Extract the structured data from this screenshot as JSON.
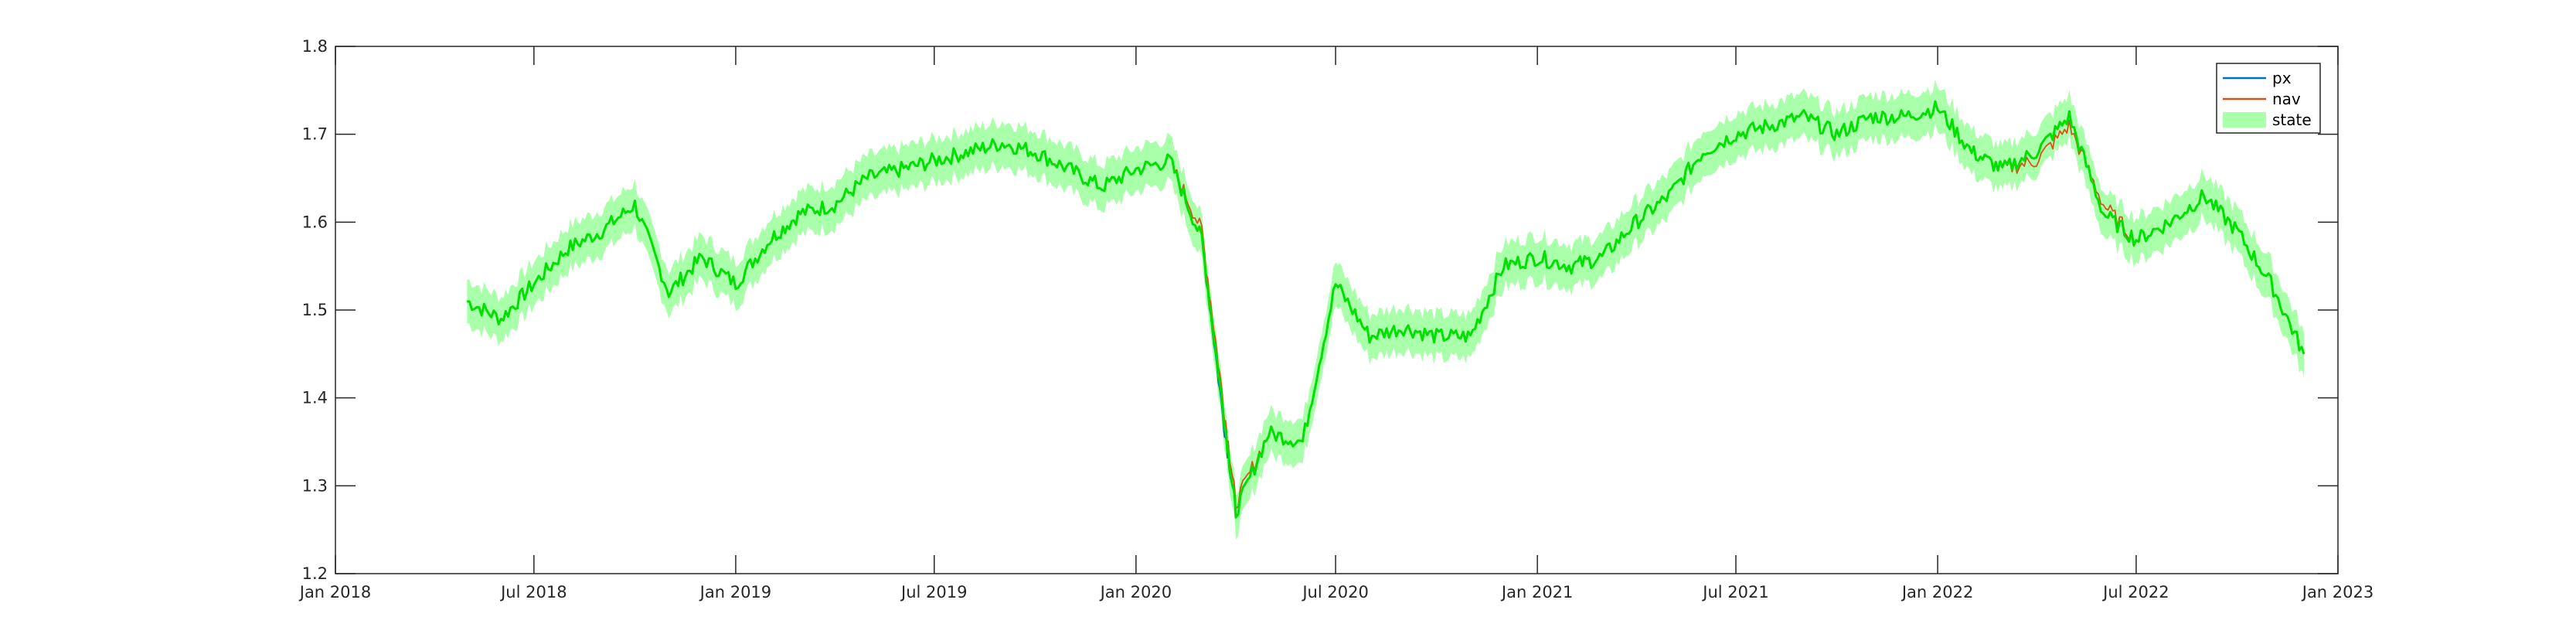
{
  "chart_data": {
    "type": "line",
    "title": "",
    "xlabel": "",
    "ylabel": "",
    "xlim": [
      "2018-01-01",
      "2023-01-01"
    ],
    "ylim": [
      1.2,
      1.8
    ],
    "grid": false,
    "legend_position": "top-right",
    "x_tick_labels": [
      "Jan 2018",
      "Jul 2018",
      "Jan 2019",
      "Jul 2019",
      "Jan 2020",
      "Jul 2020",
      "Jan 2021",
      "Jul 2021",
      "Jan 2022",
      "Jul 2022",
      "Jan 2023"
    ],
    "x_tick_dates": [
      "2018-01-01",
      "2018-07-01",
      "2019-01-01",
      "2019-07-01",
      "2020-01-01",
      "2020-07-01",
      "2021-01-01",
      "2021-07-01",
      "2022-01-01",
      "2022-07-01",
      "2023-01-01"
    ],
    "y_tick_labels": [
      "1.2",
      "1.3",
      "1.4",
      "1.5",
      "1.6",
      "1.7",
      "1.8"
    ],
    "y_tick_values": [
      1.2,
      1.3,
      1.4,
      1.5,
      1.6,
      1.7,
      1.8
    ],
    "dates": [
      "2018-05-01",
      "2018-06-01",
      "2018-07-01",
      "2018-08-01",
      "2018-09-01",
      "2018-10-01",
      "2018-11-01",
      "2018-12-01",
      "2019-01-01",
      "2019-02-01",
      "2019-03-01",
      "2019-04-01",
      "2019-05-01",
      "2019-06-01",
      "2019-07-01",
      "2019-08-01",
      "2019-09-01",
      "2019-10-01",
      "2019-11-01",
      "2019-12-01",
      "2020-01-01",
      "2020-02-01",
      "2020-03-01",
      "2020-03-20",
      "2020-04-01",
      "2020-05-01",
      "2020-06-01",
      "2020-07-01",
      "2020-08-01",
      "2020-09-01",
      "2020-10-01",
      "2020-11-01",
      "2020-12-01",
      "2021-01-01",
      "2021-02-01",
      "2021-03-01",
      "2021-04-01",
      "2021-05-01",
      "2021-06-01",
      "2021-07-01",
      "2021-08-01",
      "2021-09-01",
      "2021-10-01",
      "2021-11-01",
      "2021-12-01",
      "2022-01-01",
      "2022-02-01",
      "2022-03-01",
      "2022-04-01",
      "2022-05-01",
      "2022-06-01",
      "2022-07-01",
      "2022-08-01",
      "2022-09-01",
      "2022-10-01",
      "2022-11-01",
      "2022-12-01"
    ],
    "series": [
      {
        "name": "px",
        "color": "#0072BD",
        "values": [
          1.51,
          1.49,
          1.53,
          1.57,
          1.59,
          1.62,
          1.52,
          1.56,
          1.53,
          1.58,
          1.61,
          1.62,
          1.65,
          1.66,
          1.67,
          1.68,
          1.69,
          1.68,
          1.66,
          1.64,
          1.66,
          1.67,
          1.58,
          1.38,
          1.27,
          1.36,
          1.35,
          1.53,
          1.47,
          1.48,
          1.47,
          1.47,
          1.55,
          1.56,
          1.55,
          1.56,
          1.6,
          1.63,
          1.68,
          1.7,
          1.71,
          1.72,
          1.7,
          1.72,
          1.72,
          1.73,
          1.68,
          1.66,
          1.68,
          1.72,
          1.61,
          1.58,
          1.6,
          1.63,
          1.59,
          1.53,
          1.45
        ]
      },
      {
        "name": "nav",
        "color": "#D95319",
        "values": [
          1.51,
          1.49,
          1.53,
          1.57,
          1.59,
          1.62,
          1.52,
          1.56,
          1.53,
          1.58,
          1.61,
          1.62,
          1.65,
          1.66,
          1.67,
          1.68,
          1.69,
          1.68,
          1.66,
          1.64,
          1.66,
          1.67,
          1.59,
          1.4,
          1.28,
          1.36,
          1.35,
          1.53,
          1.47,
          1.48,
          1.47,
          1.47,
          1.55,
          1.56,
          1.55,
          1.56,
          1.6,
          1.63,
          1.68,
          1.7,
          1.71,
          1.72,
          1.7,
          1.72,
          1.72,
          1.73,
          1.68,
          1.66,
          1.67,
          1.71,
          1.62,
          1.58,
          1.6,
          1.63,
          1.59,
          1.53,
          1.45
        ]
      },
      {
        "name": "state",
        "color": "#00E000",
        "band_color": "#AAFFAA",
        "band_halfwidth": 0.025,
        "values": [
          1.51,
          1.49,
          1.53,
          1.57,
          1.59,
          1.62,
          1.52,
          1.56,
          1.53,
          1.58,
          1.61,
          1.62,
          1.65,
          1.66,
          1.67,
          1.68,
          1.69,
          1.68,
          1.66,
          1.64,
          1.66,
          1.67,
          1.58,
          1.39,
          1.27,
          1.36,
          1.35,
          1.53,
          1.47,
          1.48,
          1.47,
          1.47,
          1.55,
          1.56,
          1.55,
          1.56,
          1.6,
          1.63,
          1.68,
          1.7,
          1.71,
          1.72,
          1.7,
          1.72,
          1.72,
          1.73,
          1.68,
          1.66,
          1.68,
          1.72,
          1.61,
          1.58,
          1.6,
          1.63,
          1.59,
          1.53,
          1.45
        ]
      }
    ],
    "legend": [
      {
        "label": "px",
        "kind": "line",
        "color": "#0072BD"
      },
      {
        "label": "nav",
        "kind": "line",
        "color": "#D95319"
      },
      {
        "label": "state",
        "kind": "patch",
        "color": "#AAFFAA"
      }
    ]
  }
}
